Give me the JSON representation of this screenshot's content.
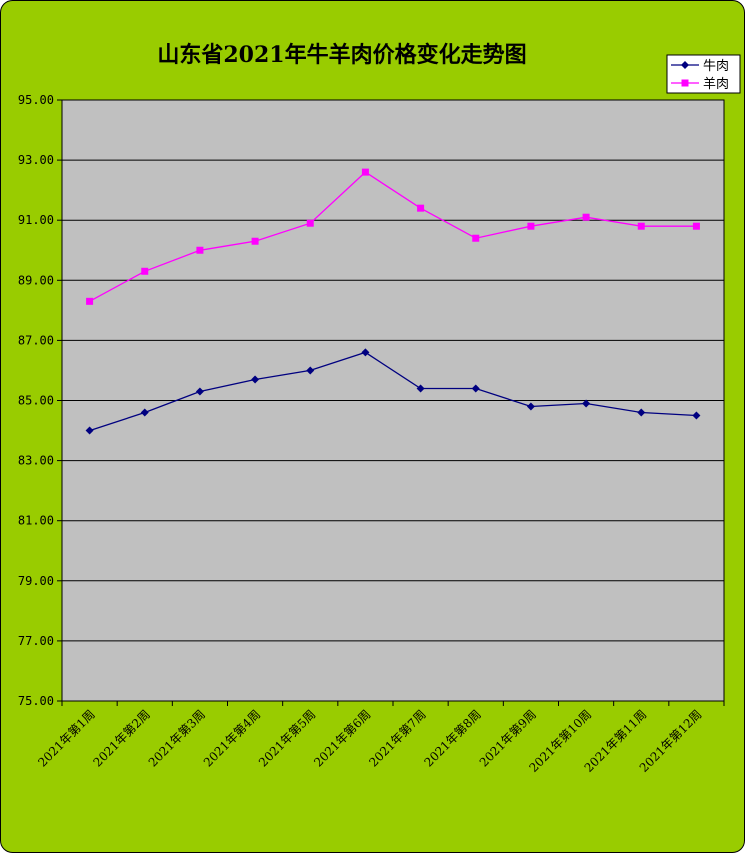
{
  "chart_data": {
    "type": "line",
    "title": "山东省2021年牛羊肉价格变化走势图",
    "categories": [
      "2021年第1周",
      "2021年第2周",
      "2021年第3周",
      "2021年第4周",
      "2021年第5周",
      "2021年第6周",
      "2021年第7周",
      "2021年第8周",
      "2021年第9周",
      "2021年第10周",
      "2021年第11周",
      "2021年第12周"
    ],
    "y_ticks": [
      "95.00",
      "93.00",
      "91.00",
      "89.00",
      "87.00",
      "85.00",
      "83.00",
      "81.00",
      "79.00",
      "77.00",
      "75.00"
    ],
    "ylim": [
      75,
      95
    ],
    "grid": true,
    "legend_position": "top-right",
    "series": [
      {
        "name": "牛肉",
        "color": "#000080",
        "marker": "diamond",
        "values": [
          84.0,
          84.6,
          85.3,
          85.7,
          86.0,
          86.6,
          85.4,
          85.4,
          84.8,
          84.9,
          84.6,
          84.5
        ]
      },
      {
        "name": "羊肉",
        "color": "#FF00FF",
        "marker": "square",
        "values": [
          88.3,
          89.3,
          90.0,
          90.3,
          90.9,
          92.6,
          91.4,
          90.4,
          90.8,
          91.1,
          90.8,
          90.8
        ]
      }
    ],
    "colors": {
      "background": "#99CC00",
      "plot_area": "#C0C0C0",
      "border": "#000000"
    }
  }
}
